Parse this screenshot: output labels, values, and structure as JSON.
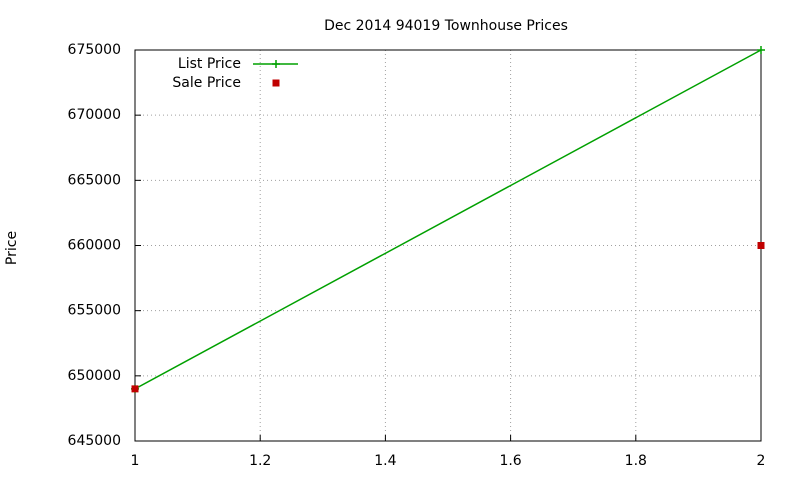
{
  "chart_data": {
    "type": "line",
    "title": "Dec 2014 94019 Townhouse Prices",
    "y_label": "Price",
    "x": [
      1,
      2
    ],
    "series": [
      {
        "name": "List Price",
        "color": "#00a000",
        "style": "linespoints",
        "values": [
          649000,
          675000
        ]
      },
      {
        "name": "Sale Price",
        "color": "#c00000",
        "style": "points",
        "values": [
          649000,
          660000
        ]
      }
    ],
    "xlim": [
      1,
      2
    ],
    "xticks": [
      1,
      1.2,
      1.4,
      1.6,
      1.8,
      2
    ],
    "ylim": [
      645000,
      675000
    ],
    "yticks": [
      645000,
      650000,
      655000,
      660000,
      665000,
      670000,
      675000
    ],
    "grid": true,
    "legend": "top-left"
  }
}
